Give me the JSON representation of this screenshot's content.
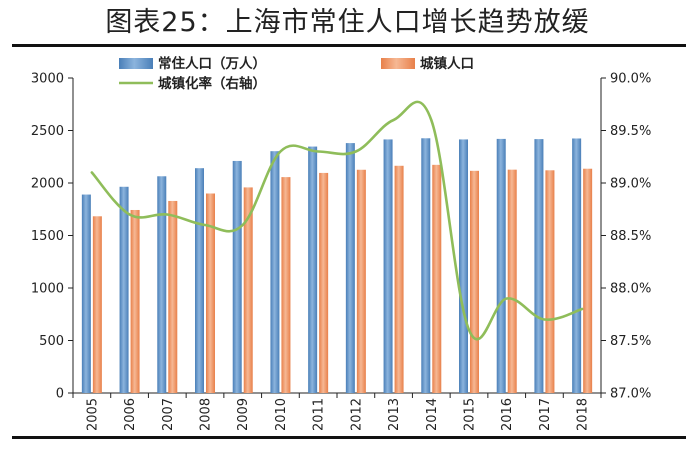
{
  "title": "图表25：上海市常住人口增长趋势放缓",
  "colors": {
    "resident_bar": "#4a7fb8",
    "resident_bar_light": "#8cb4dd",
    "urban_bar": "#e8804a",
    "urban_bar_light": "#f6b894",
    "rate_line": "#8fbd5a",
    "axis": "#222222",
    "rule": "#111111"
  },
  "chart_data": {
    "type": "bar",
    "categories": [
      "2005",
      "2006",
      "2007",
      "2008",
      "2009",
      "2010",
      "2011",
      "2012",
      "2013",
      "2014",
      "2015",
      "2016",
      "2017",
      "2018"
    ],
    "series": [
      {
        "name": "常住人口（万人）",
        "kind": "bar",
        "axis": "left",
        "values": [
          1890,
          1964,
          2064,
          2141,
          2210,
          2303,
          2347,
          2380,
          2415,
          2426,
          2415,
          2420,
          2418,
          2424
        ]
      },
      {
        "name": "城镇人口",
        "kind": "bar",
        "axis": "left",
        "values": [
          1683,
          1743,
          1829,
          1900,
          1958,
          2056,
          2096,
          2126,
          2164,
          2173,
          2116,
          2127,
          2121,
          2136
        ]
      },
      {
        "name": "城镇化率（右轴）",
        "kind": "line",
        "axis": "right",
        "values": [
          89.1,
          88.7,
          88.7,
          88.6,
          88.6,
          89.3,
          89.3,
          89.3,
          89.6,
          89.6,
          87.6,
          87.9,
          87.7,
          87.8
        ]
      }
    ],
    "y_left": {
      "lim": [
        0,
        3000
      ],
      "ticks": [
        0,
        500,
        1000,
        1500,
        2000,
        2500,
        3000
      ]
    },
    "y_right": {
      "lim": [
        87.0,
        90.0
      ],
      "ticks": [
        87.0,
        87.5,
        88.0,
        88.5,
        89.0,
        89.5,
        90.0
      ],
      "tick_labels": [
        "87.0%",
        "87.5%",
        "88.0%",
        "88.5%",
        "89.0%",
        "89.5%",
        "90.0%"
      ]
    },
    "grid": false,
    "legend_position": "top-left"
  }
}
